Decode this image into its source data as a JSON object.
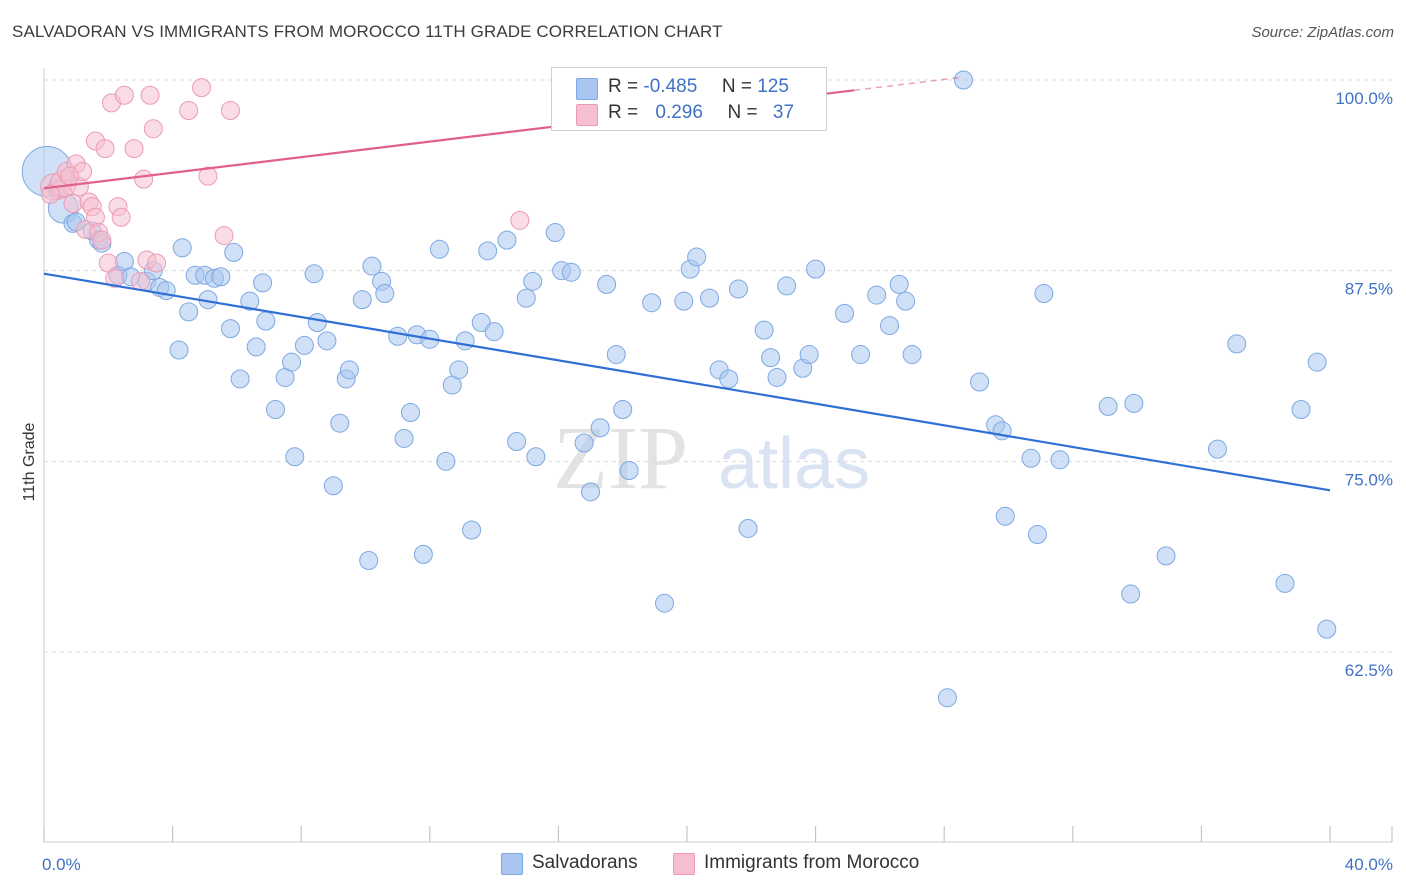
{
  "title": "SALVADORAN VS IMMIGRANTS FROM MOROCCO 11TH GRADE CORRELATION CHART",
  "source": "Source: ZipAtlas.com",
  "legend": {
    "r_label": "R =",
    "n_label": "N =",
    "rows": [
      {
        "r": "-0.485",
        "n": "125",
        "color": "#aac6f0"
      },
      {
        "r": "0.296",
        "n": "37",
        "color": "#f6bfcf"
      }
    ]
  },
  "bottom_legend": {
    "series1": "Salvadorans",
    "series2": "Immigrants from Morocco"
  },
  "chart_data": {
    "type": "scatter",
    "title": "SALVADORAN VS IMMIGRANTS FROM MOROCCO 11TH GRADE CORRELATION CHART",
    "xlabel": "",
    "ylabel": "11th Grade",
    "xlim": [
      0,
      40
    ],
    "ylim": [
      0.51,
      1.0
    ],
    "x_tick_labels": [
      "0.0%",
      "40.0%"
    ],
    "y_ticks": [
      1.0,
      0.875,
      0.75,
      0.625
    ],
    "y_tick_labels": [
      "100.0%",
      "87.5%",
      "75.0%",
      "62.5%"
    ],
    "watermark": {
      "part1": "ZIP",
      "part2": "atlas"
    },
    "series": [
      {
        "name": "Salvadorans",
        "color": "#aac6f0",
        "stroke": "#7ea8e3",
        "trend_color": "#2f6fd6",
        "trend": {
          "x0": 0,
          "y0": 0.873,
          "x1": 40,
          "y1": 0.731,
          "solid_to": 40
        },
        "points": [
          [
            0.1,
            0.94,
            26
          ],
          [
            0.4,
            0.929,
            10
          ],
          [
            0.6,
            0.916,
            16
          ],
          [
            0.9,
            0.906,
            10
          ],
          [
            1.0,
            0.907,
            10
          ],
          [
            1.5,
            0.901,
            10
          ],
          [
            1.7,
            0.895,
            10
          ],
          [
            1.8,
            0.893,
            10
          ],
          [
            2.3,
            0.872,
            10
          ],
          [
            2.5,
            0.881,
            10
          ],
          [
            2.7,
            0.871,
            10
          ],
          [
            3.2,
            0.868,
            10
          ],
          [
            3.4,
            0.875,
            10
          ],
          [
            3.6,
            0.864,
            10
          ],
          [
            3.8,
            0.862,
            10
          ],
          [
            4.2,
            0.823,
            10
          ],
          [
            4.3,
            0.89,
            10
          ],
          [
            4.5,
            0.848,
            10
          ],
          [
            4.7,
            0.872,
            10
          ],
          [
            5.0,
            0.872,
            10
          ],
          [
            5.1,
            0.856,
            10
          ],
          [
            5.3,
            0.87,
            10
          ],
          [
            5.5,
            0.871,
            10
          ],
          [
            5.8,
            0.837,
            10
          ],
          [
            5.9,
            0.887,
            10
          ],
          [
            6.1,
            0.804,
            10
          ],
          [
            6.4,
            0.855,
            10
          ],
          [
            6.6,
            0.825,
            10
          ],
          [
            6.8,
            0.867,
            10
          ],
          [
            6.9,
            0.842,
            10
          ],
          [
            7.2,
            0.784,
            10
          ],
          [
            7.5,
            0.805,
            10
          ],
          [
            7.7,
            0.815,
            10
          ],
          [
            7.8,
            0.753,
            10
          ],
          [
            8.1,
            0.826,
            10
          ],
          [
            8.4,
            0.873,
            10
          ],
          [
            8.5,
            0.841,
            10
          ],
          [
            8.8,
            0.829,
            10
          ],
          [
            9.0,
            0.734,
            10
          ],
          [
            9.2,
            0.775,
            10
          ],
          [
            9.4,
            0.804,
            10
          ],
          [
            9.5,
            0.81,
            10
          ],
          [
            9.9,
            0.856,
            10
          ],
          [
            10.1,
            0.685,
            10
          ],
          [
            10.2,
            0.878,
            10
          ],
          [
            10.5,
            0.868,
            10
          ],
          [
            10.6,
            0.86,
            10
          ],
          [
            11.0,
            0.832,
            10
          ],
          [
            11.2,
            0.765,
            10
          ],
          [
            11.4,
            0.782,
            10
          ],
          [
            11.6,
            0.833,
            10
          ],
          [
            11.8,
            0.689,
            10
          ],
          [
            12.0,
            0.83,
            10
          ],
          [
            12.3,
            0.889,
            10
          ],
          [
            12.5,
            0.75,
            10
          ],
          [
            12.7,
            0.8,
            10
          ],
          [
            12.9,
            0.81,
            10
          ],
          [
            13.1,
            0.829,
            10
          ],
          [
            13.3,
            0.705,
            10
          ],
          [
            13.6,
            0.841,
            10
          ],
          [
            13.8,
            0.888,
            10
          ],
          [
            14.0,
            0.835,
            10
          ],
          [
            14.4,
            0.895,
            10
          ],
          [
            14.7,
            0.763,
            10
          ],
          [
            15.0,
            0.857,
            10
          ],
          [
            15.2,
            0.868,
            10
          ],
          [
            15.3,
            0.753,
            10
          ],
          [
            15.9,
            0.9,
            10
          ],
          [
            16.1,
            0.875,
            10
          ],
          [
            16.4,
            0.874,
            10
          ],
          [
            16.8,
            0.762,
            10
          ],
          [
            17.0,
            0.73,
            10
          ],
          [
            17.3,
            0.772,
            10
          ],
          [
            17.5,
            0.866,
            10
          ],
          [
            17.8,
            0.82,
            10
          ],
          [
            18.0,
            0.784,
            10
          ],
          [
            18.2,
            0.744,
            10
          ],
          [
            18.9,
            0.854,
            10
          ],
          [
            19.3,
            0.657,
            10
          ],
          [
            19.9,
            0.855,
            10
          ],
          [
            20.1,
            0.876,
            10
          ],
          [
            20.3,
            0.884,
            10
          ],
          [
            20.7,
            0.857,
            10
          ],
          [
            21.0,
            0.81,
            10
          ],
          [
            21.3,
            0.804,
            10
          ],
          [
            21.6,
            0.863,
            10
          ],
          [
            21.9,
            0.706,
            10
          ],
          [
            22.4,
            0.836,
            10
          ],
          [
            22.6,
            0.818,
            10
          ],
          [
            22.8,
            0.805,
            10
          ],
          [
            23.1,
            0.865,
            10
          ],
          [
            23.6,
            0.811,
            10
          ],
          [
            23.8,
            0.82,
            10
          ],
          [
            24.0,
            0.876,
            10
          ],
          [
            24.9,
            0.847,
            10
          ],
          [
            25.4,
            0.82,
            10
          ],
          [
            25.9,
            0.859,
            10
          ],
          [
            26.3,
            0.839,
            10
          ],
          [
            26.6,
            0.866,
            10
          ],
          [
            26.8,
            0.855,
            10
          ],
          [
            27.0,
            0.82,
            10
          ],
          [
            28.1,
            0.595,
            10
          ],
          [
            28.6,
            1.0,
            10
          ],
          [
            29.1,
            0.802,
            10
          ],
          [
            29.6,
            0.774,
            10
          ],
          [
            29.8,
            0.77,
            10
          ],
          [
            29.9,
            0.714,
            10
          ],
          [
            30.7,
            0.752,
            10
          ],
          [
            30.9,
            0.702,
            10
          ],
          [
            31.1,
            0.86,
            10
          ],
          [
            31.6,
            0.751,
            10
          ],
          [
            33.1,
            0.786,
            10
          ],
          [
            33.8,
            0.663,
            10
          ],
          [
            33.9,
            0.788,
            10
          ],
          [
            34.9,
            0.688,
            10
          ],
          [
            36.5,
            0.758,
            10
          ],
          [
            37.1,
            0.827,
            10
          ],
          [
            38.6,
            0.67,
            10
          ],
          [
            39.1,
            0.784,
            10
          ],
          [
            39.6,
            0.815,
            10
          ],
          [
            39.9,
            0.64,
            10
          ]
        ]
      },
      {
        "name": "Immigrants from Morocco",
        "color": "#f6bfcf",
        "stroke": "#ec9ab3",
        "trend_color": "#e0608a",
        "trend": {
          "x0": 0,
          "y0": 0.929,
          "x1": 40,
          "y1": 1.031,
          "solid_to": 25.2
        },
        "points": [
          [
            0.3,
            0.93,
            14
          ],
          [
            0.5,
            0.928,
            10
          ],
          [
            0.6,
            0.932,
            14
          ],
          [
            0.7,
            0.94,
            10
          ],
          [
            0.9,
            0.919,
            10
          ],
          [
            1.0,
            0.945,
            10
          ],
          [
            1.1,
            0.93,
            10
          ],
          [
            1.2,
            0.94,
            10
          ],
          [
            1.3,
            0.902,
            10
          ],
          [
            1.4,
            0.92,
            10
          ],
          [
            1.5,
            0.917,
            10
          ],
          [
            1.6,
            0.91,
            10
          ],
          [
            1.6,
            0.96,
            10
          ],
          [
            1.7,
            0.9,
            10
          ],
          [
            1.8,
            0.895,
            10
          ],
          [
            1.9,
            0.955,
            10
          ],
          [
            2.0,
            0.88,
            10
          ],
          [
            2.1,
            0.985,
            10
          ],
          [
            2.2,
            0.87,
            10
          ],
          [
            2.3,
            0.917,
            10
          ],
          [
            2.4,
            0.91,
            10
          ],
          [
            2.5,
            0.99,
            10
          ],
          [
            2.8,
            0.955,
            10
          ],
          [
            3.0,
            0.868,
            10
          ],
          [
            3.1,
            0.935,
            10
          ],
          [
            3.2,
            0.882,
            10
          ],
          [
            3.3,
            0.99,
            10
          ],
          [
            3.4,
            0.968,
            10
          ],
          [
            3.5,
            0.88,
            10
          ],
          [
            4.5,
            0.98,
            10
          ],
          [
            4.9,
            0.995,
            10
          ],
          [
            5.1,
            0.937,
            10
          ],
          [
            5.6,
            0.898,
            10
          ],
          [
            5.8,
            0.98,
            10
          ],
          [
            14.8,
            0.908,
            10
          ],
          [
            0.2,
            0.925,
            10
          ],
          [
            0.8,
            0.937,
            10
          ]
        ]
      }
    ]
  }
}
